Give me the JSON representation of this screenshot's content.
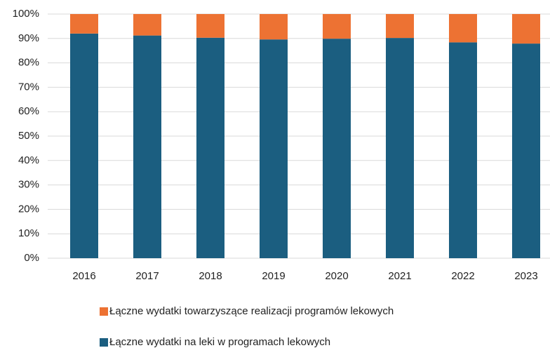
{
  "chart_data": {
    "type": "stacked_bar",
    "categories": [
      "2016",
      "2017",
      "2018",
      "2019",
      "2020",
      "2021",
      "2022",
      "2023"
    ],
    "series": [
      {
        "name": "Łączne wydatki na leki w programach lekowych",
        "color": "#1b5e80",
        "values": [
          92,
          91.2,
          90.3,
          89.6,
          89.9,
          90.2,
          88.4,
          87.9
        ]
      },
      {
        "name": "Łączne wydatki towarzyszące realizacji programów lekowych",
        "color": "#ed7233",
        "values": [
          8,
          8.8,
          9.7,
          10.4,
          10.1,
          9.8,
          11.6,
          12.1
        ]
      }
    ],
    "ylim": [
      0,
      100
    ],
    "yticks": [
      {
        "value": 0,
        "label": "0%"
      },
      {
        "value": 10,
        "label": "10%"
      },
      {
        "value": 20,
        "label": "20%"
      },
      {
        "value": 30,
        "label": "30%"
      },
      {
        "value": 40,
        "label": "40%"
      },
      {
        "value": 50,
        "label": "50%"
      },
      {
        "value": 60,
        "label": "60%"
      },
      {
        "value": 70,
        "label": "70%"
      },
      {
        "value": 80,
        "label": "80%"
      },
      {
        "value": 90,
        "label": "90%"
      },
      {
        "value": 100,
        "label": "100%"
      }
    ],
    "grid": true,
    "legend": "bottom"
  }
}
